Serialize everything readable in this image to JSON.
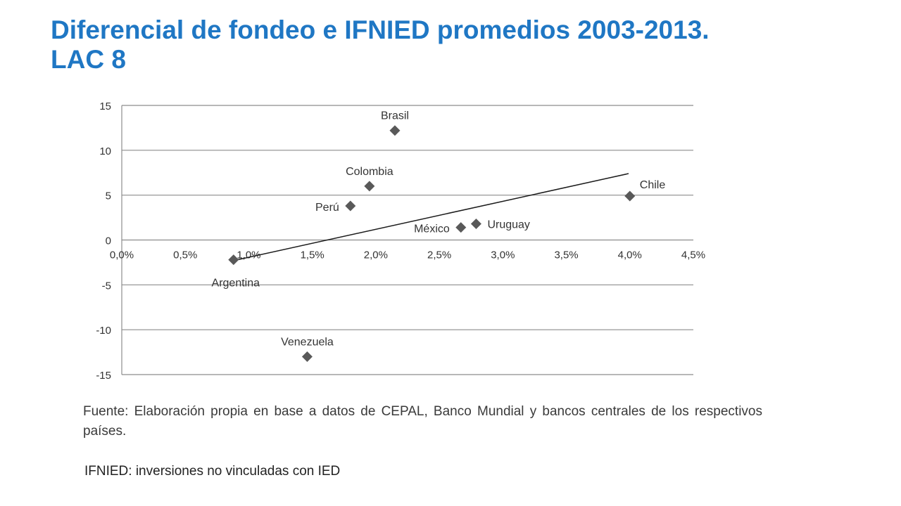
{
  "title": {
    "line1": "Diferencial de fondeo e IFNIED promedios 2003-2013.",
    "line2": "LAC 8"
  },
  "colors": {
    "title": "#1f77c4",
    "marker": "#595959",
    "gridline": "#8c8c8c",
    "trendline": "#1a1a1a",
    "text": "#3a3a3a"
  },
  "chart_data": {
    "type": "scatter",
    "x_unit": "percent",
    "xlim": [
      0.0,
      4.5
    ],
    "ylim": [
      -15,
      15
    ],
    "x_ticks": [
      0.0,
      0.5,
      1.0,
      1.5,
      2.0,
      2.5,
      3.0,
      3.5,
      4.0,
      4.5
    ],
    "x_tick_labels": [
      "0,0%",
      "0,5%",
      "1,0%",
      "1,5%",
      "2,0%",
      "2,5%",
      "3,0%",
      "3,5%",
      "4,0%",
      "4,5%"
    ],
    "y_ticks": [
      15,
      10,
      5,
      0,
      -5,
      -10,
      -15
    ],
    "y_tick_labels": [
      "15",
      "10",
      "5",
      "0",
      "-5",
      "-10",
      "-15"
    ],
    "grid": "horizontal",
    "marker": "diamond",
    "points": [
      {
        "label": "Brasil",
        "x": 2.15,
        "y": 12.2,
        "label_pos": "above"
      },
      {
        "label": "Colombia",
        "x": 1.95,
        "y": 6.0,
        "label_pos": "above"
      },
      {
        "label": "Perú",
        "x": 1.8,
        "y": 3.8,
        "label_pos": "left"
      },
      {
        "label": "Chile",
        "x": 4.0,
        "y": 4.9,
        "label_pos": "upper-right"
      },
      {
        "label": "México",
        "x": 2.67,
        "y": 1.4,
        "label_pos": "left"
      },
      {
        "label": "Uruguay",
        "x": 2.79,
        "y": 1.8,
        "label_pos": "right"
      },
      {
        "label": "Argentina",
        "x": 0.88,
        "y": -2.2,
        "label_pos": "below"
      },
      {
        "label": "Venezuela",
        "x": 1.46,
        "y": -13.0,
        "label_pos": "above"
      }
    ],
    "trendline": {
      "x": [
        0.88,
        3.99
      ],
      "y": [
        -2.3,
        7.4
      ]
    }
  },
  "source_note": "Fuente: Elaboración propia en base a datos de CEPAL, Banco Mundial y bancos centrales de los respectivos países.",
  "footnote": "IFNIED: inversiones no vinculadas con IED"
}
